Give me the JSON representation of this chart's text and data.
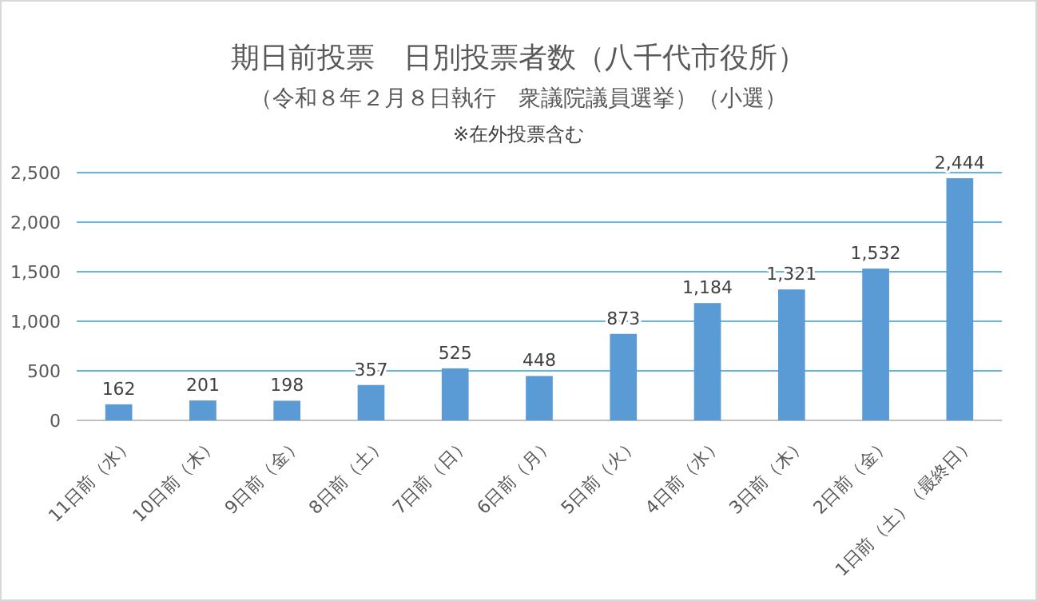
{
  "chart_data": {
    "type": "bar",
    "title": "期日前投票　日別投票者数（八千代市役所）",
    "subtitle": "（令和８年２月８日執行　衆議院議員選挙）（小選）",
    "annotations": [
      "※在外投票含む"
    ],
    "categories": [
      "11日前（水）",
      "10日前（木）",
      "9日前（金）",
      "8日前（土）",
      "7日前（日）",
      "6日前（月）",
      "5日前（火）",
      "4日前（水）",
      "3日前（木）",
      "2日前（金）",
      "1日前（土）（最終日）"
    ],
    "values": [
      162,
      201,
      198,
      357,
      525,
      448,
      873,
      1184,
      1321,
      1532,
      2444
    ],
    "color": "#5b9bd5",
    "ylim": [
      0,
      2500
    ],
    "yticks": [
      {
        "value": 0,
        "label": "0"
      },
      {
        "value": 500,
        "label": "500"
      },
      {
        "value": 1000,
        "label": "1,000"
      },
      {
        "value": 1500,
        "label": "1,500"
      },
      {
        "value": 2000,
        "label": "2,000"
      },
      {
        "value": 2500,
        "label": "2,500"
      }
    ],
    "value_labels": [
      "162",
      "201",
      "198",
      "357",
      "525",
      "448",
      "873",
      "1,184",
      "1,321",
      "1,532",
      "2,444"
    ],
    "grid": true
  }
}
